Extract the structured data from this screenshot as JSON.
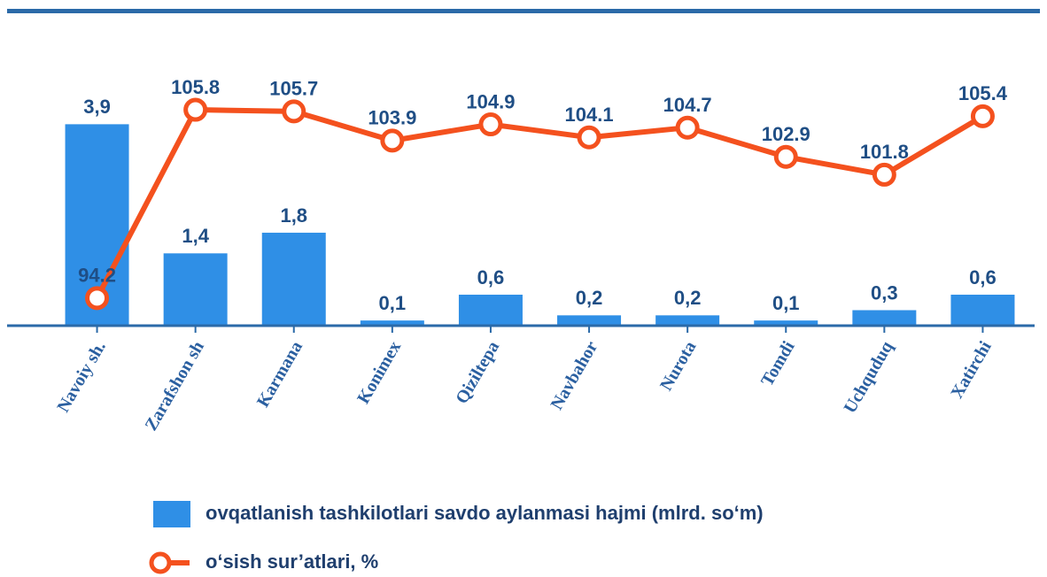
{
  "chart_data": {
    "type": "bar-line",
    "categories": [
      "Navoiy sh.",
      "Zarafshon sh",
      "Karmana",
      "Konimex",
      "Qiziltepa",
      "Navbahor",
      "Nurota",
      "Tomdi",
      "Uchquduq",
      "Xatirchi"
    ],
    "series": [
      {
        "name": "ovqatlanish tashkilotlari savdo aylanmasi hajmi (mlrd. so‘m)",
        "type": "bar",
        "color": "#2f8fe6",
        "values": [
          3.9,
          1.4,
          1.8,
          0.1,
          0.6,
          0.2,
          0.2,
          0.1,
          0.3,
          0.6
        ],
        "value_labels": [
          "3,9",
          "1,4",
          "1,8",
          "0,1",
          "0,6",
          "0,2",
          "0,2",
          "0,1",
          "0,3",
          "0,6"
        ]
      },
      {
        "name": "o‘sish sur’atlari, %",
        "type": "line",
        "axis": "y2",
        "color": "#f4511e",
        "values": [
          94.2,
          105.8,
          105.7,
          103.9,
          104.9,
          104.1,
          104.7,
          102.9,
          101.8,
          105.4
        ]
      }
    ],
    "ylim": [
      0,
      5.5
    ],
    "y2lim": [
      92.5,
      110
    ]
  }
}
